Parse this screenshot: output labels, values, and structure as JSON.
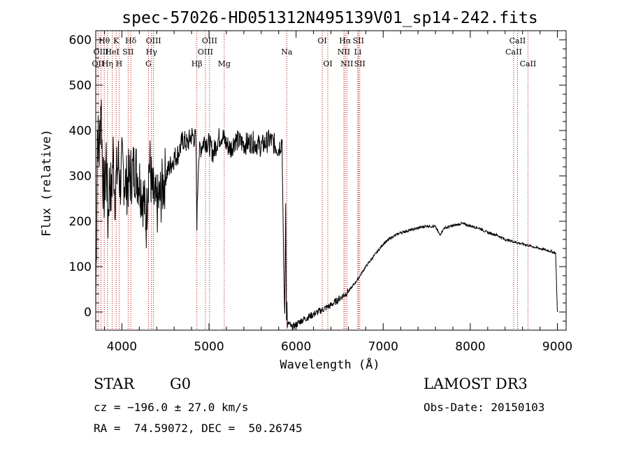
{
  "chart_data": {
    "type": "line",
    "title": "spec-57026-HD051312N495139V01_sp14-242.fits",
    "xlabel": "Wavelength (Å)",
    "ylabel": "Flux (relative)",
    "xlim": [
      3700,
      9100
    ],
    "ylim": [
      -40,
      620
    ],
    "xticks": [
      4000,
      5000,
      6000,
      7000,
      8000,
      9000
    ],
    "yticks": [
      0,
      100,
      200,
      300,
      400,
      500,
      600
    ],
    "series": [
      {
        "name": "flux",
        "x": [
          3700,
          3720,
          3740,
          3760,
          3780,
          3800,
          3820,
          3840,
          3860,
          3880,
          3900,
          3920,
          3940,
          3960,
          3980,
          4000,
          4050,
          4100,
          4150,
          4200,
          4250,
          4280,
          4300,
          4320,
          4350,
          4400,
          4450,
          4500,
          4550,
          4600,
          4650,
          4700,
          4750,
          4800,
          4850,
          4861,
          4880,
          4900,
          4950,
          5000,
          5050,
          5100,
          5150,
          5200,
          5250,
          5300,
          5400,
          5500,
          5600,
          5700,
          5750,
          5800,
          5840,
          5850,
          5860,
          5870,
          5880,
          5890,
          5895,
          5900,
          5920,
          5950,
          6000,
          6050,
          6100,
          6200,
          6300,
          6400,
          6500,
          6600,
          6700,
          6800,
          6900,
          7000,
          7100,
          7200,
          7300,
          7400,
          7500,
          7600,
          7650,
          7700,
          7800,
          7900,
          8000,
          8100,
          8200,
          8300,
          8400,
          8500,
          8600,
          8700,
          8800,
          8900,
          8980,
          9000
        ],
        "y": [
          20,
          400,
          350,
          480,
          300,
          250,
          350,
          200,
          300,
          250,
          350,
          260,
          300,
          330,
          280,
          320,
          280,
          300,
          320,
          290,
          250,
          200,
          300,
          330,
          260,
          230,
          260,
          300,
          320,
          340,
          350,
          380,
          370,
          390,
          380,
          200,
          340,
          360,
          380,
          370,
          350,
          380,
          390,
          370,
          360,
          380,
          370,
          375,
          365,
          380,
          370,
          360,
          380,
          200,
          80,
          -10,
          240,
          -20,
          20,
          -30,
          -25,
          -35,
          -28,
          -20,
          -15,
          -5,
          5,
          15,
          30,
          45,
          70,
          100,
          125,
          150,
          165,
          175,
          180,
          185,
          190,
          188,
          170,
          185,
          190,
          195,
          190,
          185,
          175,
          170,
          160,
          155,
          150,
          145,
          140,
          135,
          130,
          0
        ]
      }
    ],
    "line_markers": [
      {
        "label": "OII",
        "x": 3727,
        "row": 3
      },
      {
        "label": "Hθ",
        "x": 3798,
        "row": 1
      },
      {
        "label": "OIII",
        "x": 3760,
        "row": 2
      },
      {
        "label": "Hη",
        "x": 3835,
        "row": 3
      },
      {
        "label": "HeI",
        "x": 3889,
        "row": 2
      },
      {
        "label": "K",
        "x": 3934,
        "row": 1
      },
      {
        "label": "H",
        "x": 3968,
        "row": 3
      },
      {
        "label": "SII",
        "x": 4072,
        "row": 2
      },
      {
        "label": "Hδ",
        "x": 4102,
        "row": 1
      },
      {
        "label": "OIII",
        "x": 4363,
        "row": 1
      },
      {
        "label": "Hγ",
        "x": 4340,
        "row": 2
      },
      {
        "label": "G",
        "x": 4305,
        "row": 3
      },
      {
        "label": "Hβ",
        "x": 4861,
        "row": 3
      },
      {
        "label": "OIII",
        "x": 5007,
        "row": 1
      },
      {
        "label": "OIII",
        "x": 4959,
        "row": 2
      },
      {
        "label": "Mg",
        "x": 5175,
        "row": 3
      },
      {
        "label": "Na",
        "x": 5893,
        "row": 2
      },
      {
        "label": "OI",
        "x": 6300,
        "row": 1
      },
      {
        "label": "OI",
        "x": 6364,
        "row": 3
      },
      {
        "label": "Hα",
        "x": 6563,
        "row": 1
      },
      {
        "label": "NII",
        "x": 6548,
        "row": 2
      },
      {
        "label": "NII",
        "x": 6583,
        "row": 3
      },
      {
        "label": "SII",
        "x": 6716,
        "row": 1
      },
      {
        "label": "Li",
        "x": 6708,
        "row": 2
      },
      {
        "label": "SII",
        "x": 6731,
        "row": 3
      },
      {
        "label": "CaII",
        "x": 8498,
        "row": 2
      },
      {
        "label": "CaII",
        "x": 8542,
        "row": 1
      },
      {
        "label": "CaII",
        "x": 8662,
        "row": 3
      }
    ],
    "marker_color": "#c00000"
  },
  "info": {
    "classification": "STAR",
    "subclass": "G0",
    "survey": "LAMOST DR3",
    "cz": "cz = −196.0 ± 27.0 km/s",
    "obs_date": "Obs-Date: 20150103",
    "coords": "RA =  74.59072, DEC =  50.26745"
  }
}
